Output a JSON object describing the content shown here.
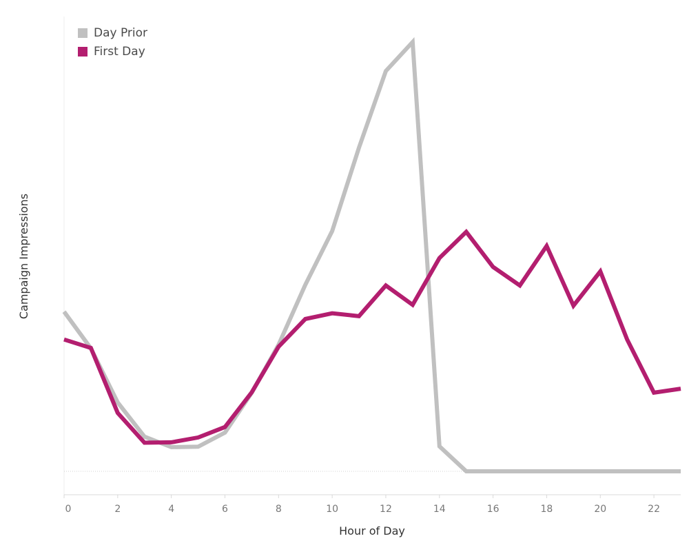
{
  "chart_data": {
    "type": "line",
    "xlabel": "Hour of Day",
    "ylabel": "Campaign Impressions",
    "xlim": [
      0,
      23
    ],
    "ylim": [
      0,
      100
    ],
    "x_ticks": [
      0,
      2,
      4,
      6,
      8,
      10,
      12,
      14,
      16,
      18,
      20,
      22
    ],
    "grid": false,
    "legend_position": "top-left",
    "x": [
      0,
      1,
      2,
      3,
      4,
      5,
      6,
      7,
      8,
      9,
      10,
      11,
      12,
      13,
      14,
      15,
      16,
      17,
      18,
      19,
      20,
      21,
      22,
      23
    ],
    "series": [
      {
        "name": "Day Prior",
        "color": "#c0c0c0",
        "values": [
          39.6,
          30.5,
          17.1,
          8.6,
          6.0,
          6.1,
          9.6,
          19.5,
          31.4,
          46.3,
          59.6,
          80.3,
          99.3,
          106.5,
          6.2,
          0.0,
          0.0,
          0.0,
          0.0,
          0.0,
          0.0,
          0.0,
          0.0,
          0.0
        ]
      },
      {
        "name": "First Day",
        "color": "#b31e6f",
        "values": [
          32.7,
          30.6,
          14.5,
          7.1,
          7.2,
          8.4,
          11.0,
          19.6,
          30.9,
          37.8,
          39.2,
          38.5,
          46.1,
          41.3,
          52.9,
          59.4,
          50.7,
          46.1,
          55.9,
          41.1,
          49.6,
          32.7,
          19.5,
          20.5
        ]
      }
    ]
  }
}
